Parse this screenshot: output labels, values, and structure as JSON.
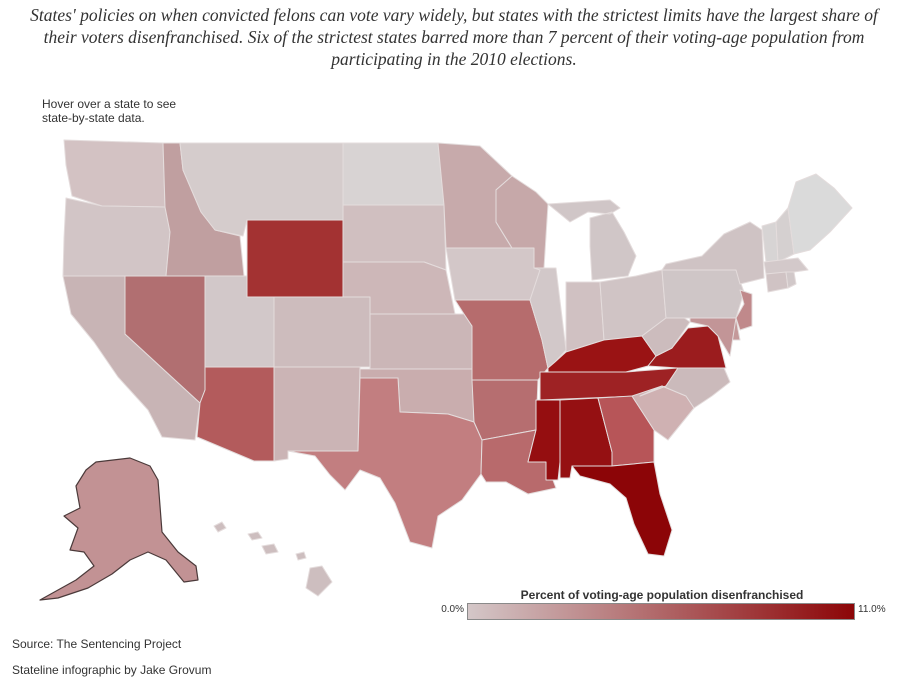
{
  "intro": "States' policies on when convicted felons can vote vary widely, but states with the strictest limits have the largest share of their voters disenfranchised. Six of the strictest states barred more than 7 percent of their voting-age population from participating in the 2010 elections.",
  "hint": "Hover over a state to see state-by-state data.",
  "legend": {
    "title": "Percent of voting-age population disenfranchised",
    "min_label": "0.0%",
    "max_label": "11.0%",
    "color_low": "#d4c7c8",
    "color_high": "#8c0507",
    "range": [
      0,
      11
    ]
  },
  "source": "Source: The Sentencing Project",
  "credit": "Stateline infographic by Jake Grovum",
  "colors": {
    "background": "#ffffff",
    "state_border": "#e4dcdc",
    "outline": "#4b3a3a"
  }
}
